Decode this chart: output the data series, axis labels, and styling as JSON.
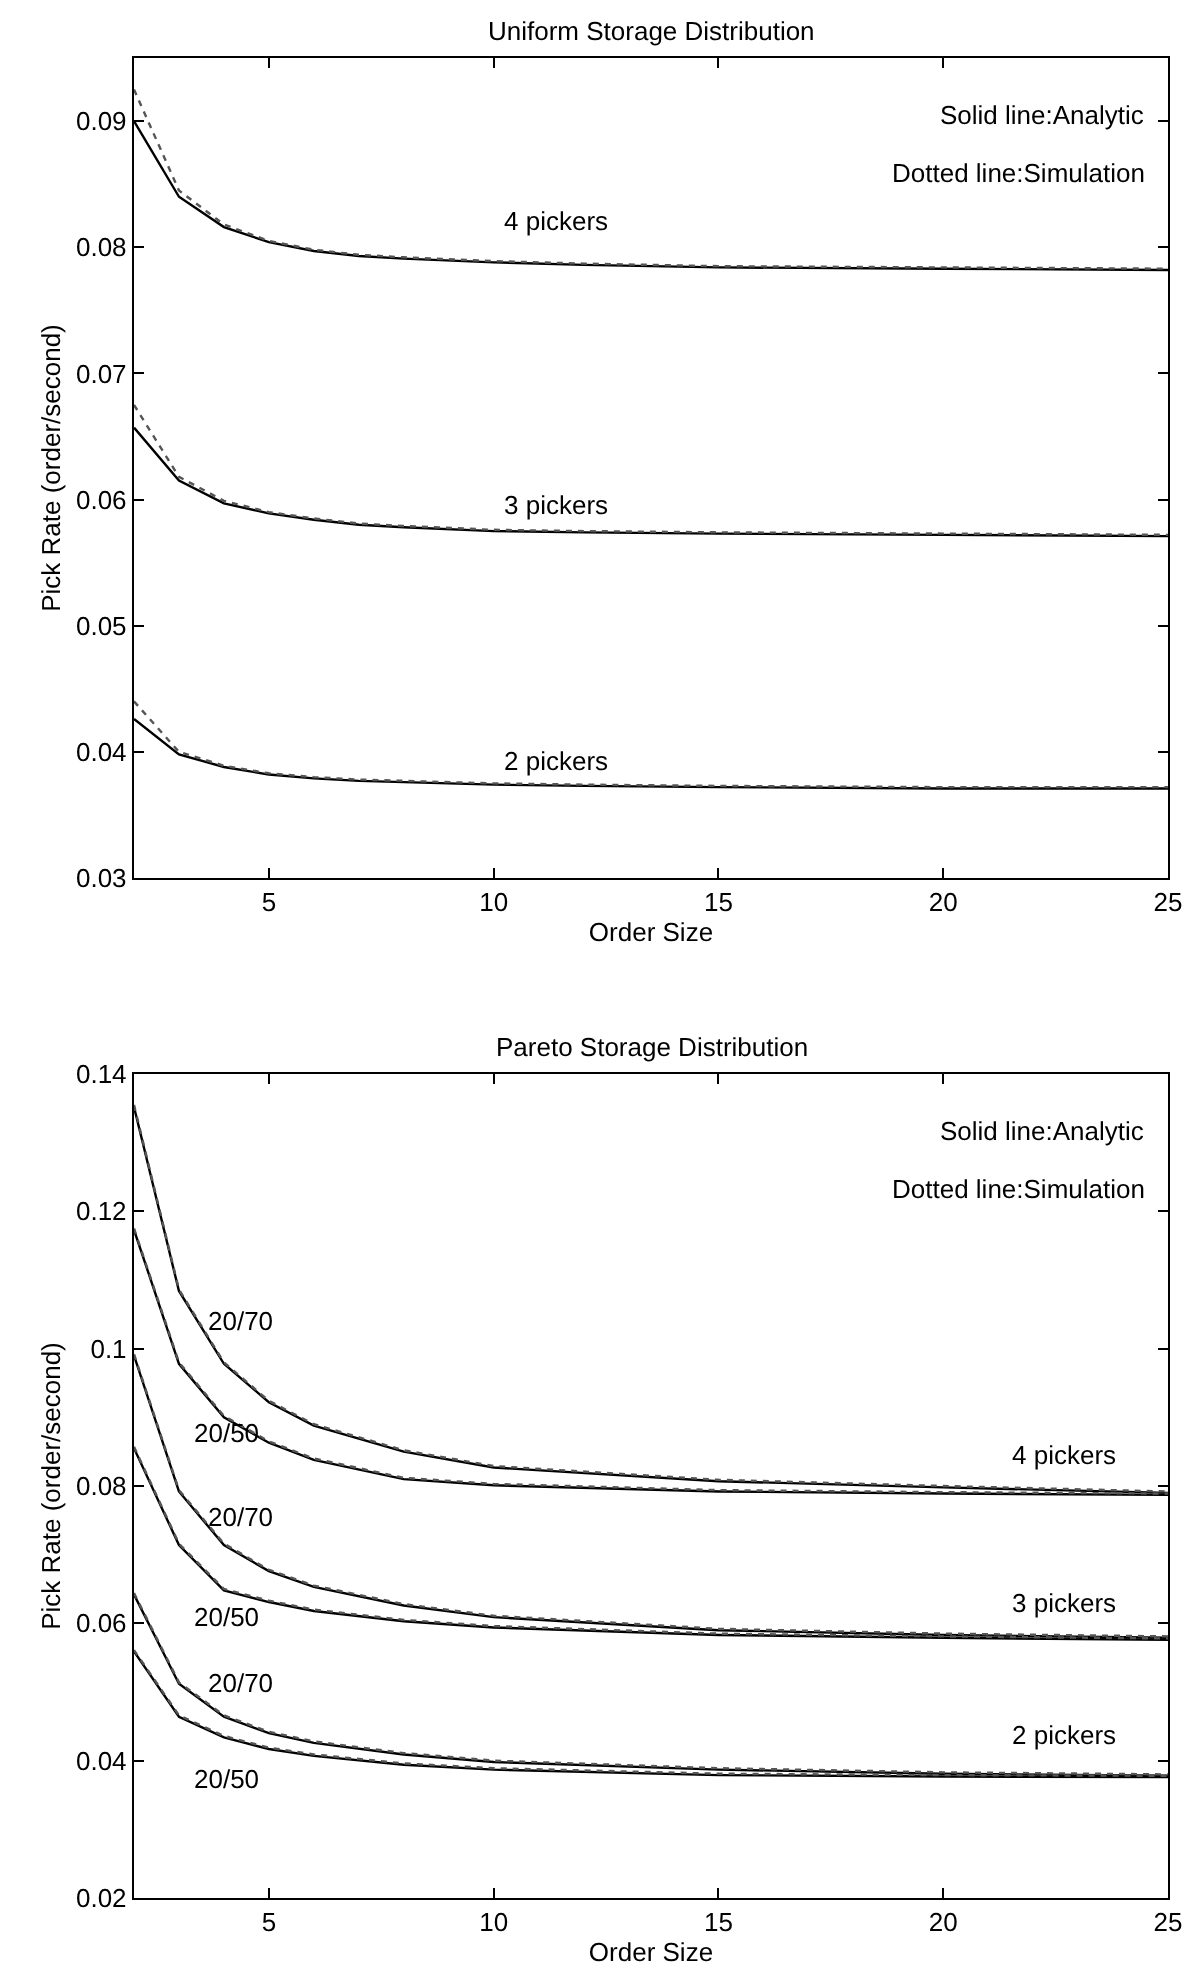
{
  "chart_data": [
    {
      "type": "line",
      "title": "Uniform Storage Distribution",
      "xlabel": "Order Size",
      "ylabel": "Pick Rate (order/second)",
      "xlim": [
        2,
        25
      ],
      "xticks": [
        5,
        10,
        15,
        20,
        25
      ],
      "ylim": [
        0.03,
        0.095
      ],
      "yticks": [
        0.03,
        0.04,
        0.05,
        0.06,
        0.07,
        0.08,
        0.09
      ],
      "marker": "none",
      "x": [
        2,
        3,
        4,
        5,
        6,
        7,
        8,
        10,
        12,
        15,
        20,
        25
      ],
      "series": [
        {
          "color": "#000000",
          "line_style": "solid",
          "values": [
            0.09,
            0.084,
            0.0816,
            0.0804,
            0.0797,
            0.0793,
            0.0791,
            0.0788,
            0.0786,
            0.0784,
            0.0783,
            0.0782
          ]
        },
        {
          "color": "#555555",
          "line_style": "dotted",
          "values": [
            0.0925,
            0.0845,
            0.0818,
            0.0805,
            0.0798,
            0.0794,
            0.0792,
            0.0789,
            0.0787,
            0.0785,
            0.0784,
            0.0783
          ]
        },
        {
          "color": "#000000",
          "line_style": "solid",
          "values": [
            0.0657,
            0.0615,
            0.0597,
            0.0589,
            0.0584,
            0.058,
            0.0578,
            0.0575,
            0.0574,
            0.0573,
            0.0572,
            0.0571
          ]
        },
        {
          "color": "#555555",
          "line_style": "dotted",
          "values": [
            0.0675,
            0.0618,
            0.0599,
            0.059,
            0.0585,
            0.0581,
            0.0579,
            0.0576,
            0.0575,
            0.0574,
            0.0573,
            0.0572
          ]
        },
        {
          "color": "#000000",
          "line_style": "solid",
          "values": [
            0.0426,
            0.0398,
            0.0388,
            0.0382,
            0.0379,
            0.0377,
            0.0376,
            0.0374,
            0.0373,
            0.0372,
            0.0371,
            0.0371
          ]
        },
        {
          "color": "#555555",
          "line_style": "dotted",
          "values": [
            0.044,
            0.04,
            0.0389,
            0.0383,
            0.038,
            0.0378,
            0.0377,
            0.0375,
            0.0374,
            0.0373,
            0.0372,
            0.0372
          ]
        }
      ],
      "annotations": [
        "Solid line:Analytic",
        "Dotted line:Simulation",
        "4 pickers",
        "3 pickers",
        "2 pickers"
      ]
    },
    {
      "type": "line",
      "title": "Pareto Storage Distribution",
      "xlabel": "Order Size",
      "ylabel": "Pick Rate (order/second)",
      "xlim": [
        2,
        25
      ],
      "xticks": [
        5,
        10,
        15,
        20,
        25
      ],
      "ylim": [
        0.02,
        0.14
      ],
      "yticks": [
        0.02,
        0.04,
        0.06,
        0.08,
        {
          "value": 0.1,
          "label": "0.1"
        },
        0.12,
        0.14
      ],
      "marker": "none",
      "x": [
        2,
        3,
        4,
        5,
        6,
        8,
        10,
        15,
        20,
        25
      ],
      "series": [
        {
          "color": "#000000",
          "line_style": "solid",
          "values": [
            0.1352,
            0.1084,
            0.0978,
            0.0922,
            0.0888,
            0.085,
            0.0827,
            0.0807,
            0.0798,
            0.079
          ]
        },
        {
          "color": "#555555",
          "line_style": "dotted",
          "values": [
            0.1355,
            0.1086,
            0.098,
            0.0924,
            0.089,
            0.0852,
            0.0829,
            0.0809,
            0.08,
            0.0792
          ]
        },
        {
          "color": "#000000",
          "line_style": "solid",
          "values": [
            0.1173,
            0.0978,
            0.09,
            0.0863,
            0.0838,
            0.081,
            0.0801,
            0.0792,
            0.0789,
            0.0787
          ]
        },
        {
          "color": "#555555",
          "line_style": "dotted",
          "values": [
            0.1175,
            0.098,
            0.0902,
            0.0865,
            0.084,
            0.0812,
            0.0803,
            0.0794,
            0.0791,
            0.0789
          ]
        },
        {
          "color": "#000000",
          "line_style": "solid",
          "values": [
            0.099,
            0.0792,
            0.0714,
            0.0676,
            0.0653,
            0.0626,
            0.0609,
            0.059,
            0.0583,
            0.0579
          ]
        },
        {
          "color": "#555555",
          "line_style": "dotted",
          "values": [
            0.0992,
            0.0794,
            0.0716,
            0.0678,
            0.0655,
            0.0628,
            0.0611,
            0.0592,
            0.0585,
            0.0581
          ]
        },
        {
          "color": "#000000",
          "line_style": "solid",
          "values": [
            0.0855,
            0.0714,
            0.0648,
            0.0631,
            0.0618,
            0.0603,
            0.0594,
            0.0583,
            0.0579,
            0.0576
          ]
        },
        {
          "color": "#555555",
          "line_style": "dotted",
          "values": [
            0.0857,
            0.0716,
            0.065,
            0.0633,
            0.062,
            0.0605,
            0.0596,
            0.0585,
            0.0581,
            0.0578
          ]
        },
        {
          "color": "#000000",
          "line_style": "solid",
          "values": [
            0.0642,
            0.0512,
            0.0464,
            0.044,
            0.0426,
            0.0409,
            0.0398,
            0.0387,
            0.0381,
            0.0378
          ]
        },
        {
          "color": "#555555",
          "line_style": "dotted",
          "values": [
            0.0644,
            0.0514,
            0.0466,
            0.0442,
            0.0428,
            0.0411,
            0.04,
            0.0389,
            0.0383,
            0.038
          ]
        },
        {
          "color": "#000000",
          "line_style": "solid",
          "values": [
            0.0559,
            0.0464,
            0.0434,
            0.0417,
            0.0407,
            0.0394,
            0.0387,
            0.0379,
            0.0377,
            0.0376
          ]
        },
        {
          "color": "#555555",
          "line_style": "dotted",
          "values": [
            0.0561,
            0.0466,
            0.0436,
            0.0419,
            0.0409,
            0.0396,
            0.0389,
            0.0381,
            0.0379,
            0.0378
          ]
        }
      ],
      "annotations": [
        "Solid line:Analytic",
        "Dotted line:Simulation",
        "20/70",
        "20/50",
        "20/70",
        "20/50",
        "20/70",
        "20/50",
        "4 pickers",
        "3 pickers",
        "2 pickers"
      ]
    }
  ]
}
